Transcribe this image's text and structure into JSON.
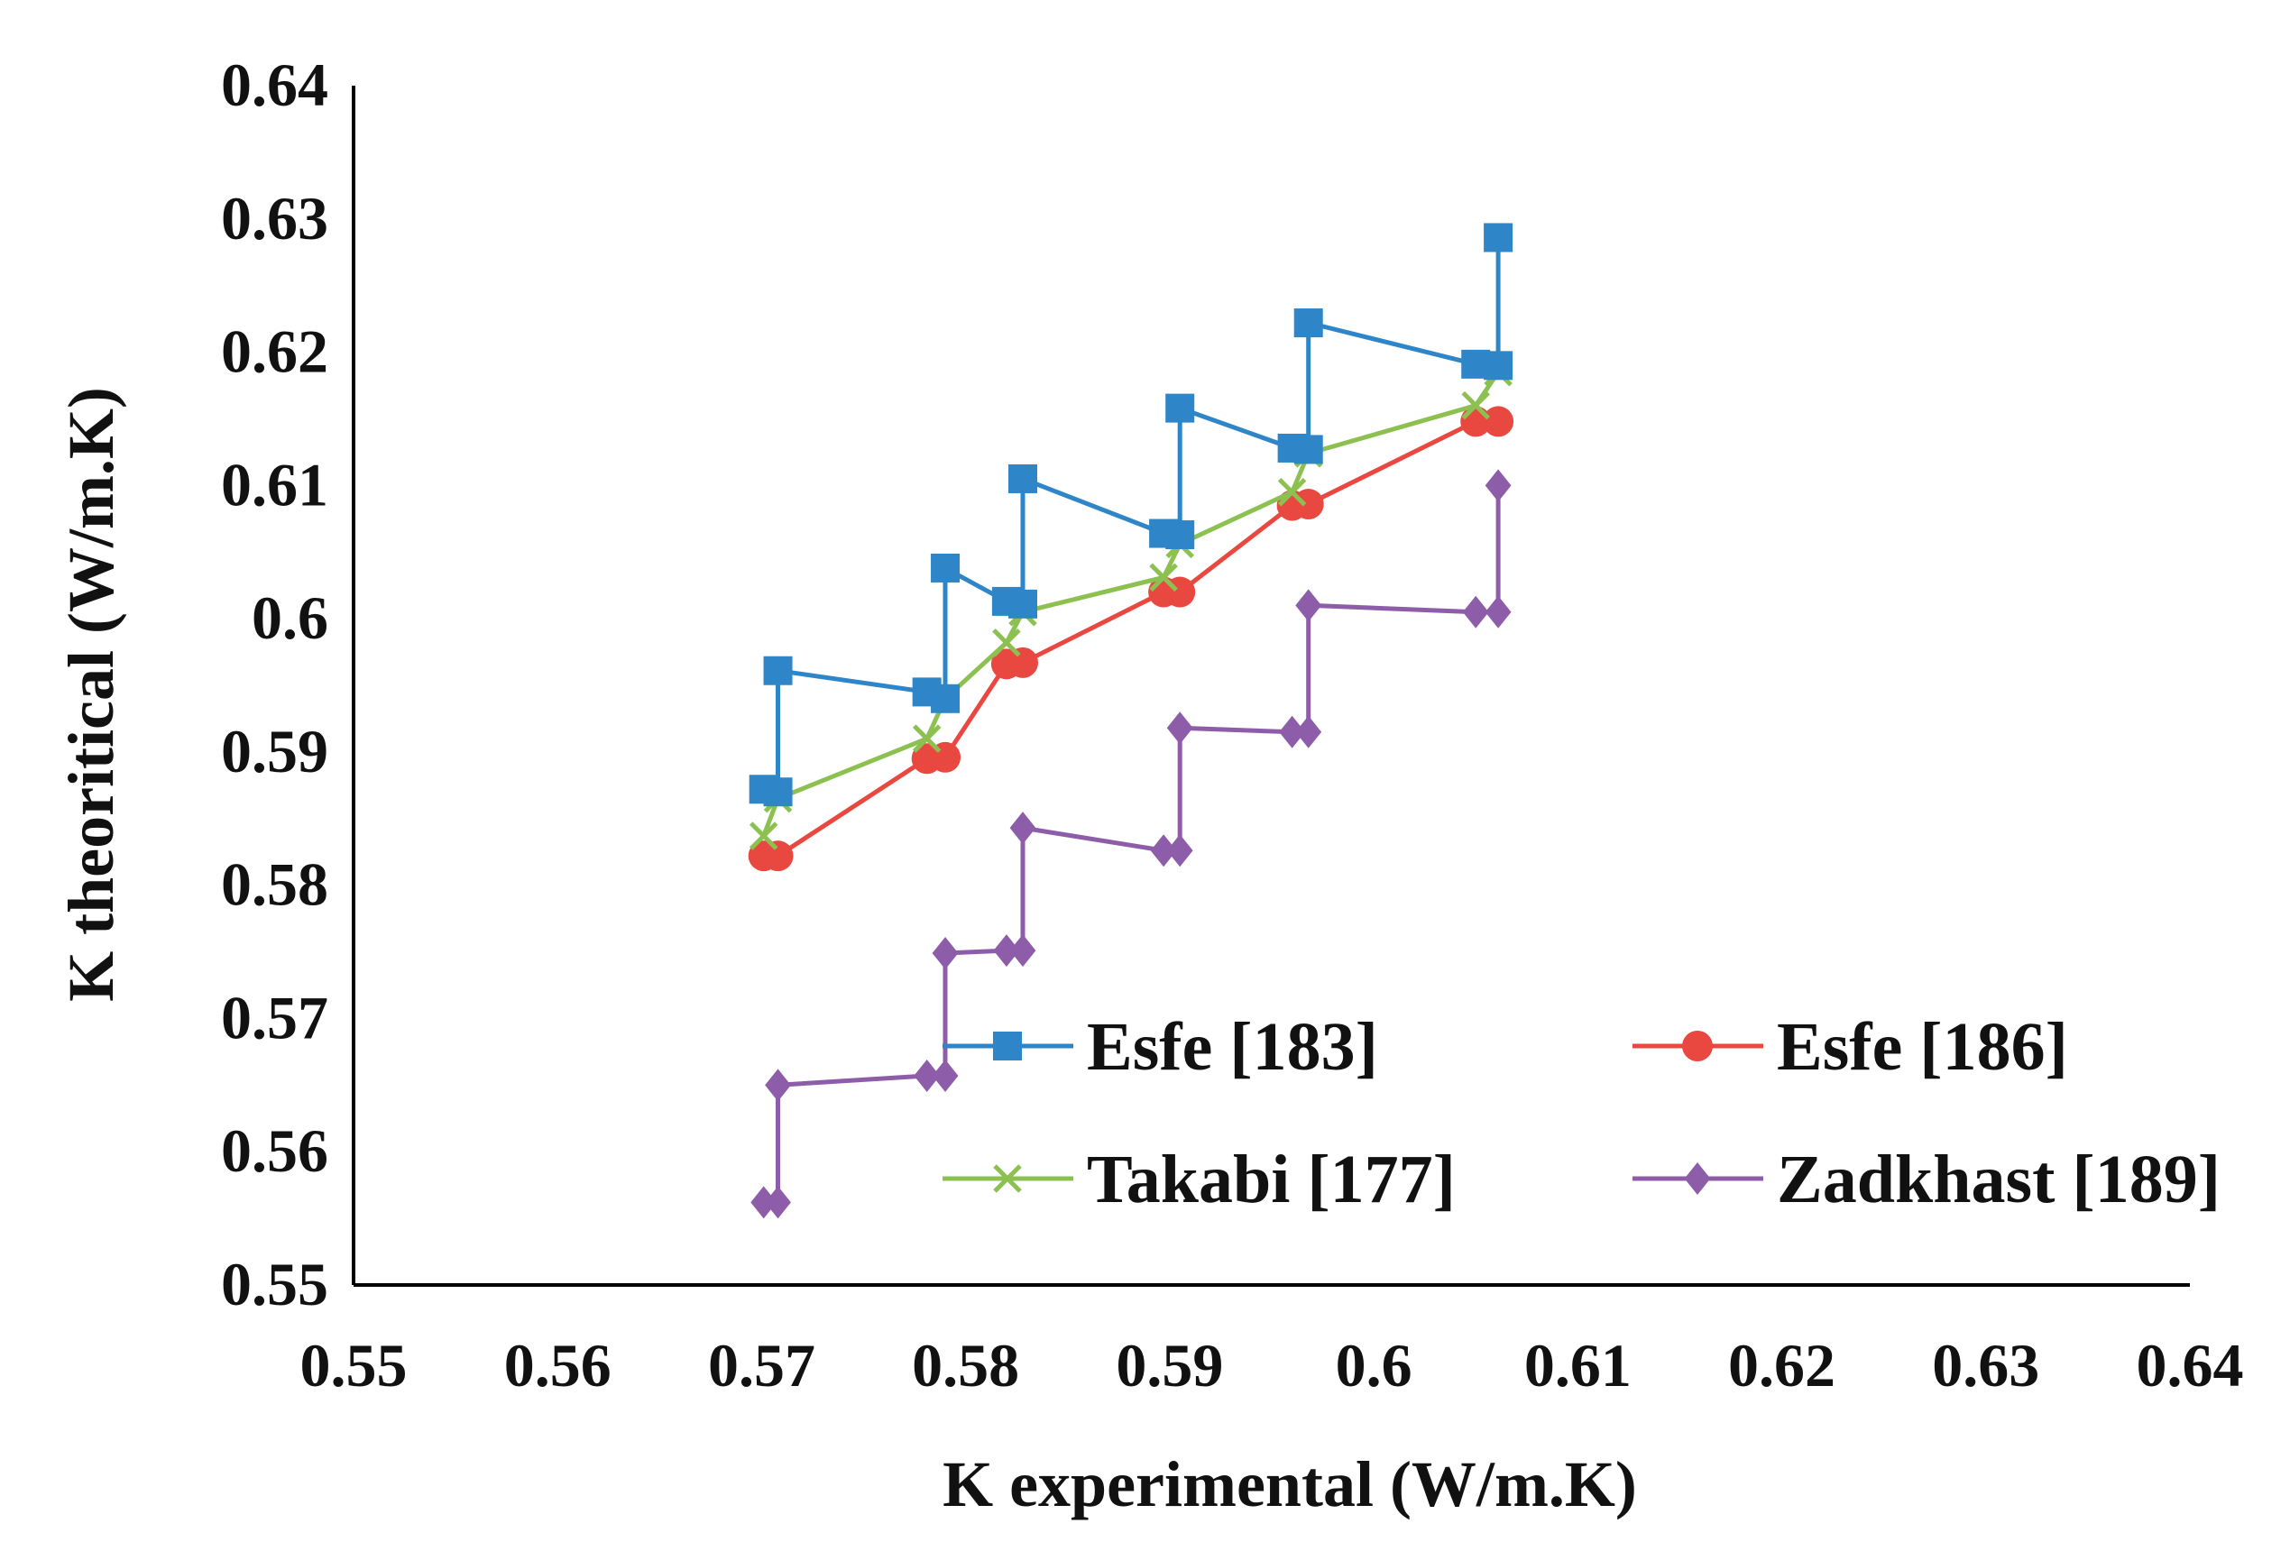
{
  "chart_data": {
    "type": "line",
    "title": "",
    "xlabel": "K experimental (W/m.K)",
    "ylabel": "K theoritical (W/m.K)",
    "xlim": [
      0.55,
      0.64
    ],
    "ylim": [
      0.55,
      0.64
    ],
    "x_ticks": [
      "0.55",
      "0.56",
      "0.57",
      "0.58",
      "0.59",
      "0.6",
      "0.61",
      "0.62",
      "0.63",
      "0.64"
    ],
    "y_ticks": [
      "0.55",
      "0.56",
      "0.57",
      "0.58",
      "0.59",
      "0.6",
      "0.61",
      "0.62",
      "0.63",
      "0.64"
    ],
    "grid": false,
    "legend_position": "bottom-right",
    "series": [
      {
        "name": "Esfe [183]",
        "color": "#2E86C8",
        "marker": "square",
        "points": [
          [
            0.5701,
            0.5872
          ],
          [
            0.5708,
            0.587
          ],
          [
            0.5708,
            0.5961
          ],
          [
            0.5781,
            0.5945
          ],
          [
            0.579,
            0.594
          ],
          [
            0.579,
            0.6038
          ],
          [
            0.582,
            0.6013
          ],
          [
            0.5828,
            0.6011
          ],
          [
            0.5828,
            0.6105
          ],
          [
            0.5897,
            0.6064
          ],
          [
            0.5905,
            0.6063
          ],
          [
            0.5905,
            0.6158
          ],
          [
            0.596,
            0.6128
          ],
          [
            0.5968,
            0.6127
          ],
          [
            0.5968,
            0.6222
          ],
          [
            0.605,
            0.6191
          ],
          [
            0.6061,
            0.619
          ],
          [
            0.6061,
            0.6286
          ]
        ]
      },
      {
        "name": "Esfe [186]",
        "color": "#E8483F",
        "marker": "circle",
        "points": [
          [
            0.5701,
            0.5822
          ],
          [
            0.5708,
            0.5822
          ],
          [
            0.5781,
            0.5895
          ],
          [
            0.579,
            0.5896
          ],
          [
            0.582,
            0.5966
          ],
          [
            0.5828,
            0.5967
          ],
          [
            0.5897,
            0.602
          ],
          [
            0.5905,
            0.602
          ],
          [
            0.596,
            0.6085
          ],
          [
            0.5968,
            0.6086
          ],
          [
            0.605,
            0.6148
          ],
          [
            0.6061,
            0.6148
          ]
        ]
      },
      {
        "name": "Takabi [177]",
        "color": "#8CC152",
        "marker": "x",
        "points": [
          [
            0.5701,
            0.5837
          ],
          [
            0.5708,
            0.5865
          ],
          [
            0.5781,
            0.591
          ],
          [
            0.579,
            0.594
          ],
          [
            0.582,
            0.5982
          ],
          [
            0.5828,
            0.6005
          ],
          [
            0.5897,
            0.6031
          ],
          [
            0.5905,
            0.6056
          ],
          [
            0.596,
            0.6095
          ],
          [
            0.5968,
            0.6124
          ],
          [
            0.605,
            0.616
          ],
          [
            0.6061,
            0.6185
          ]
        ]
      },
      {
        "name": "Zadkhast [189]",
        "color": "#8E5DAA",
        "marker": "diamond",
        "points": [
          [
            0.5701,
            0.5562
          ],
          [
            0.5708,
            0.5562
          ],
          [
            0.5708,
            0.565
          ],
          [
            0.5781,
            0.5657
          ],
          [
            0.579,
            0.5657
          ],
          [
            0.579,
            0.5749
          ],
          [
            0.582,
            0.5751
          ],
          [
            0.5828,
            0.5751
          ],
          [
            0.5828,
            0.5843
          ],
          [
            0.5897,
            0.5826
          ],
          [
            0.5905,
            0.5826
          ],
          [
            0.5905,
            0.5918
          ],
          [
            0.596,
            0.5915
          ],
          [
            0.5968,
            0.5915
          ],
          [
            0.5968,
            0.601
          ],
          [
            0.605,
            0.6005
          ],
          [
            0.6061,
            0.6005
          ],
          [
            0.6061,
            0.61
          ]
        ]
      }
    ]
  }
}
